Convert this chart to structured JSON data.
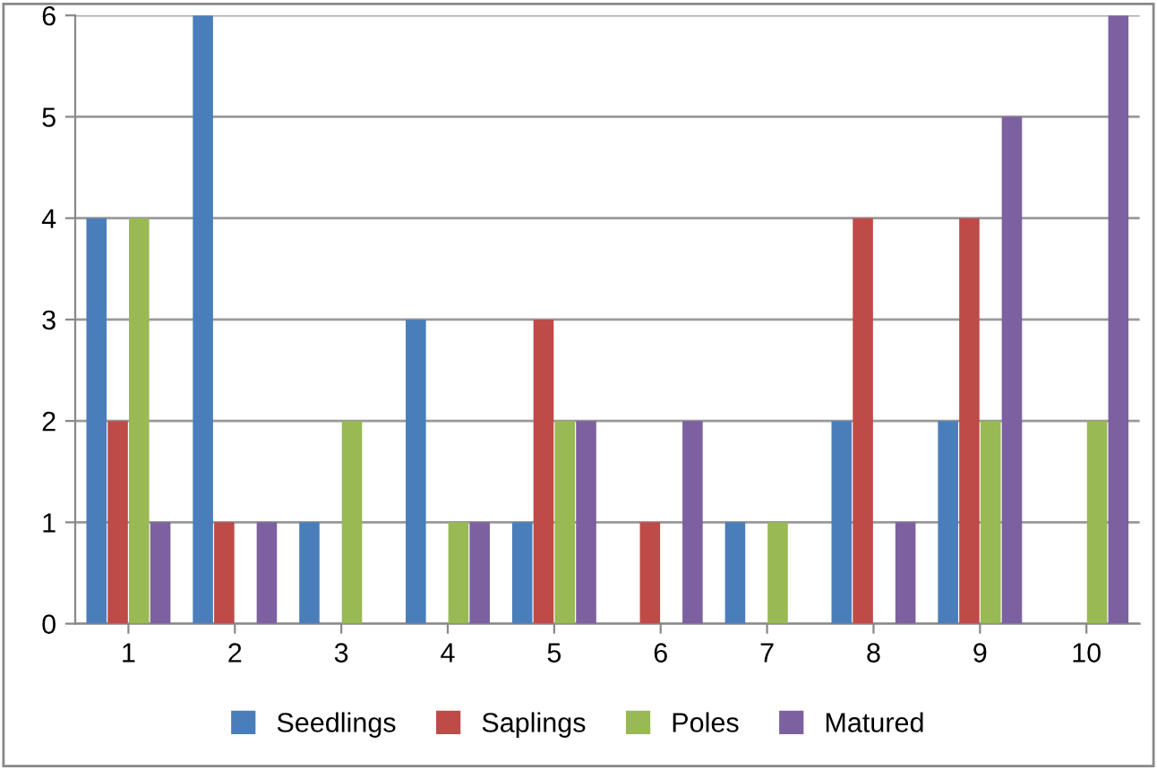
{
  "chart_data": {
    "type": "bar",
    "categories": [
      "1",
      "2",
      "3",
      "4",
      "5",
      "6",
      "7",
      "8",
      "9",
      "10"
    ],
    "series": [
      {
        "name": "Seedlings",
        "color": "#4a7ebb",
        "values": [
          4,
          6,
          1,
          3,
          1,
          0,
          1,
          2,
          2,
          0
        ]
      },
      {
        "name": "Saplings",
        "color": "#be4b48",
        "values": [
          2,
          1,
          0,
          0,
          3,
          1,
          0,
          4,
          4,
          0
        ]
      },
      {
        "name": "Poles",
        "color": "#98b954",
        "values": [
          4,
          0,
          2,
          1,
          2,
          0,
          1,
          0,
          2,
          2
        ]
      },
      {
        "name": "Matured",
        "color": "#7d60a0",
        "values": [
          1,
          1,
          0,
          1,
          2,
          2,
          0,
          1,
          5,
          6
        ]
      }
    ],
    "ylim": [
      0,
      6
    ],
    "yticks": [
      0,
      1,
      2,
      3,
      4,
      5,
      6
    ],
    "grid": "y",
    "legend": "bottom"
  }
}
